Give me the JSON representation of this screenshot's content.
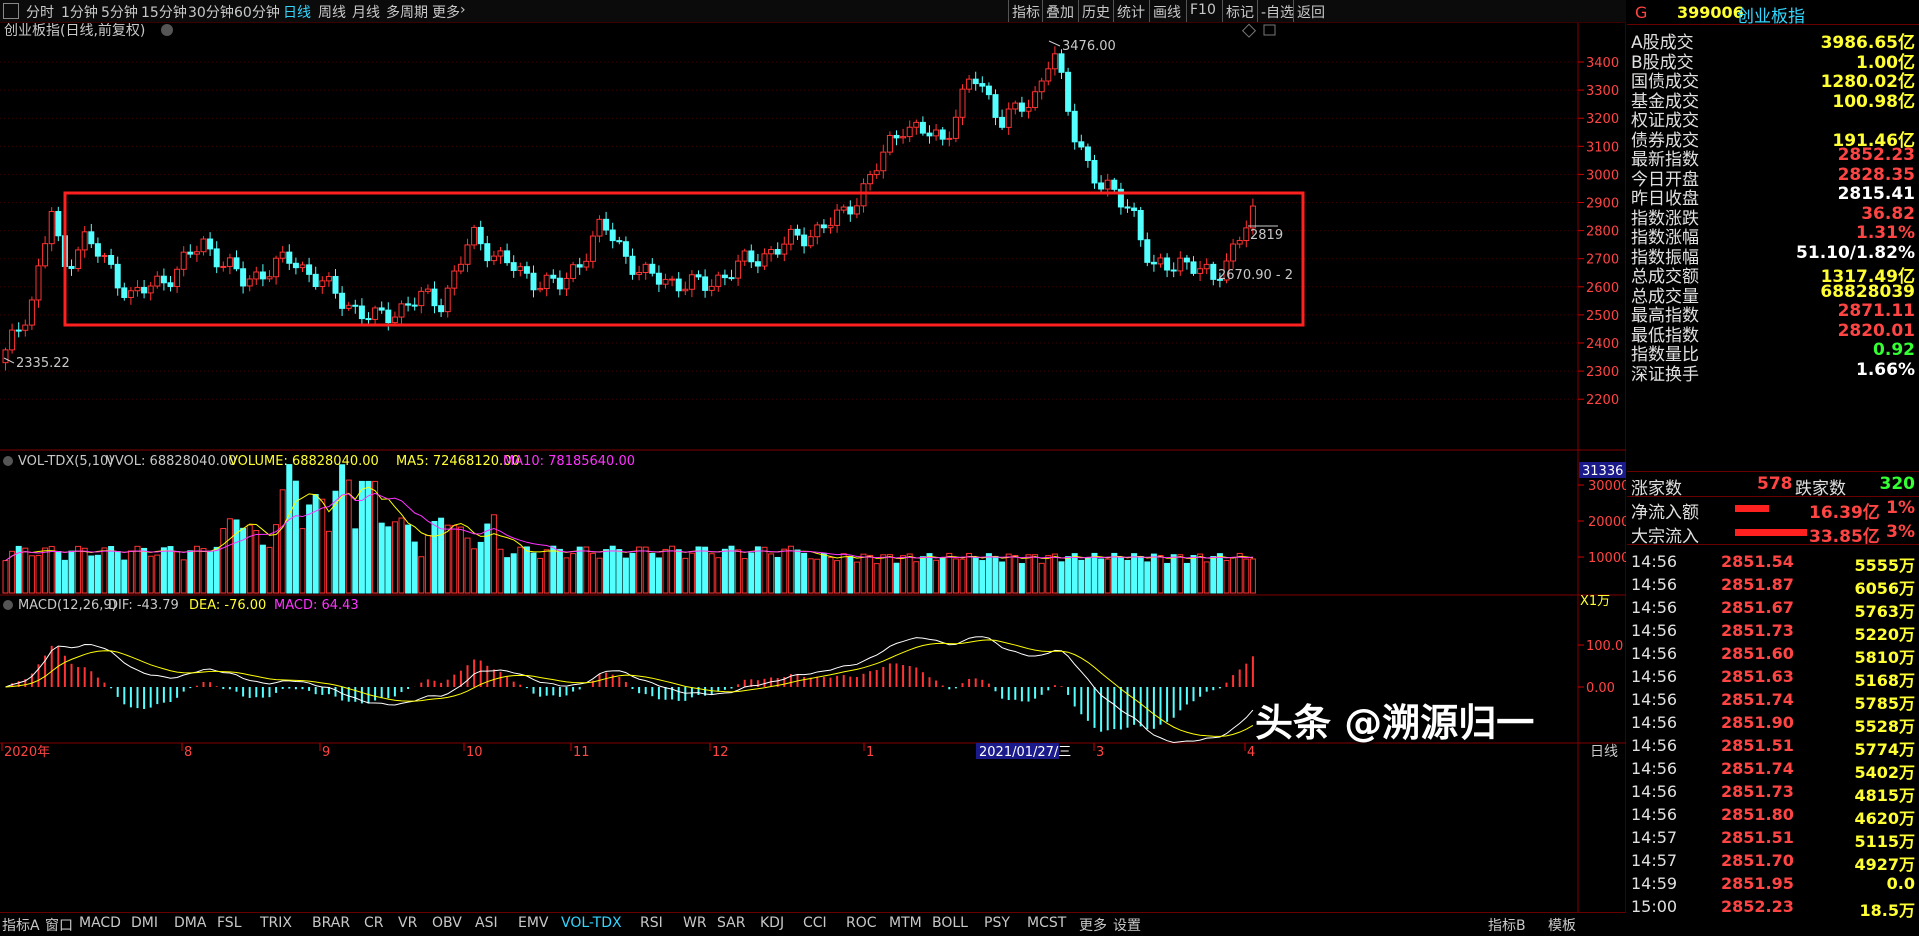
{
  "timeframe_tabs": [
    "分时",
    "1分钟",
    "5分钟",
    "15分钟",
    "30分钟",
    "60分钟",
    "日线",
    "周线",
    "月线",
    "多周期",
    "更多"
  ],
  "active_tab": "日线",
  "toolbar_right": [
    "指标",
    "叠加",
    "历史",
    "统计",
    "画线",
    "F10",
    "标记",
    "-自选",
    "返回"
  ],
  "main_chart": {
    "title": "创业板指(日线,前复权)",
    "annotation_high": "3476.00",
    "annotation_low": "2335.22",
    "annotation_right": "2670.90 - 2",
    "annotation_last": "2819",
    "y_ticks": [
      "3400",
      "3300",
      "3200",
      "3100",
      "3000",
      "2900",
      "2800",
      "2700",
      "2600",
      "2500",
      "2400",
      "2300",
      "2200"
    ]
  },
  "volume_chart": {
    "title": "VOL-TDX(5,10)",
    "vvol": "VVOL: 68828040.00",
    "volume": "VOLUME: 68828040.00",
    "ma5": "MA5: 72468120.00",
    "ma10": "MA10: 78185640.00",
    "y_ticks": [
      "30000",
      "20000",
      "10000"
    ],
    "highlight_value": "31336",
    "unit": "X1万"
  },
  "macd_chart": {
    "title": "MACD(12,26,9)",
    "dif": "DIF: -43.79",
    "dea": "DEA: -76.00",
    "macd": "MACD: 64.43",
    "y_ticks": [
      "100.0",
      "0.00"
    ]
  },
  "x_axis": {
    "labels": [
      "2020年",
      "8",
      "9",
      "10",
      "11",
      "12",
      "1",
      "3",
      "4"
    ],
    "highlight_date": "2021/01/27/三",
    "period": "日线"
  },
  "colors": {
    "up": "#ff3333",
    "down": "#54ffff",
    "ma5": "#ffff00",
    "ma10": "#ff33ff",
    "dif": "#ffffff",
    "dea": "#ffff00",
    "box": "#ff2020"
  },
  "right_panel": {
    "flag": "G",
    "code": "399006",
    "name": "创业板指",
    "stats": [
      {
        "label": "A股成交",
        "value": "3986.65亿",
        "color": "yellow"
      },
      {
        "label": "B股成交",
        "value": "1.00亿",
        "color": "yellow"
      },
      {
        "label": "国债成交",
        "value": "1280.02亿",
        "color": "yellow"
      },
      {
        "label": "基金成交",
        "value": "100.98亿",
        "color": "yellow"
      },
      {
        "label": "权证成交",
        "value": "",
        "color": "yellow"
      },
      {
        "label": "债券成交",
        "value": "191.46亿",
        "color": "yellow"
      },
      {
        "label": "最新指数",
        "value": "2852.23",
        "color": "red"
      },
      {
        "label": "今日开盘",
        "value": "2828.35",
        "color": "red"
      },
      {
        "label": "昨日收盘",
        "value": "2815.41",
        "color": "white"
      },
      {
        "label": "指数涨跌",
        "value": "36.82",
        "color": "red"
      },
      {
        "label": "指数涨幅",
        "value": "1.31%",
        "color": "red"
      },
      {
        "label": "指数振幅",
        "value": "51.10/1.82%",
        "color": "white"
      },
      {
        "label": "总成交额",
        "value": "1317.49亿",
        "color": "yellow"
      },
      {
        "label": "总成交量",
        "value": "68828039",
        "color": "yellow"
      },
      {
        "label": "最高指数",
        "value": "2871.11",
        "color": "red"
      },
      {
        "label": "最低指数",
        "value": "2820.01",
        "color": "red"
      },
      {
        "label": "指数量比",
        "value": "0.92",
        "color": "green"
      },
      {
        "label": "深证换手",
        "value": "1.66%",
        "color": "white"
      }
    ],
    "up_count_label": "涨家数",
    "up_count": "578",
    "down_count_label": "跌家数",
    "down_count": "320",
    "net_inflow_label": "净流入额",
    "net_inflow": "16.39亿",
    "net_inflow_pct": "1%",
    "block_inflow_label": "大宗流入",
    "block_inflow": "33.85亿",
    "block_inflow_pct": "3%",
    "ticks": [
      {
        "time": "14:56",
        "price": "2851.54",
        "vol": "5555万"
      },
      {
        "time": "14:56",
        "price": "2851.87",
        "vol": "6056万"
      },
      {
        "time": "14:56",
        "price": "2851.67",
        "vol": "5763万"
      },
      {
        "time": "14:56",
        "price": "2851.73",
        "vol": "5220万"
      },
      {
        "time": "14:56",
        "price": "2851.60",
        "vol": "5810万"
      },
      {
        "time": "14:56",
        "price": "2851.63",
        "vol": "5168万"
      },
      {
        "time": "14:56",
        "price": "2851.74",
        "vol": "5785万"
      },
      {
        "time": "14:56",
        "price": "2851.90",
        "vol": "5528万"
      },
      {
        "time": "14:56",
        "price": "2851.51",
        "vol": "5774万"
      },
      {
        "time": "14:56",
        "price": "2851.74",
        "vol": "5402万"
      },
      {
        "time": "14:56",
        "price": "2851.73",
        "vol": "4815万"
      },
      {
        "time": "14:56",
        "price": "2851.80",
        "vol": "4620万"
      },
      {
        "time": "14:57",
        "price": "2851.51",
        "vol": "5115万"
      },
      {
        "time": "14:57",
        "price": "2851.70",
        "vol": "4927万"
      },
      {
        "time": "14:59",
        "price": "2851.95",
        "vol": "0.0"
      },
      {
        "time": "15:00",
        "price": "2852.23",
        "vol": "18.5万"
      }
    ]
  },
  "bottom_tabs": [
    "指标A",
    "窗口",
    "MACD",
    "DMI",
    "DMA",
    "FSL",
    "TRIX",
    "BRAR",
    "CR",
    "VR",
    "OBV",
    "ASI",
    "EMV",
    "VOL-TDX",
    "RSI",
    "WR",
    "SAR",
    "KDJ",
    "CCI",
    "ROC",
    "MTM",
    "BOLL",
    "PSY",
    "MCST",
    "更多",
    "设置"
  ],
  "bottom_right_tabs": [
    "指标B",
    "模板"
  ],
  "watermark": "头条 @溯源归一"
}
